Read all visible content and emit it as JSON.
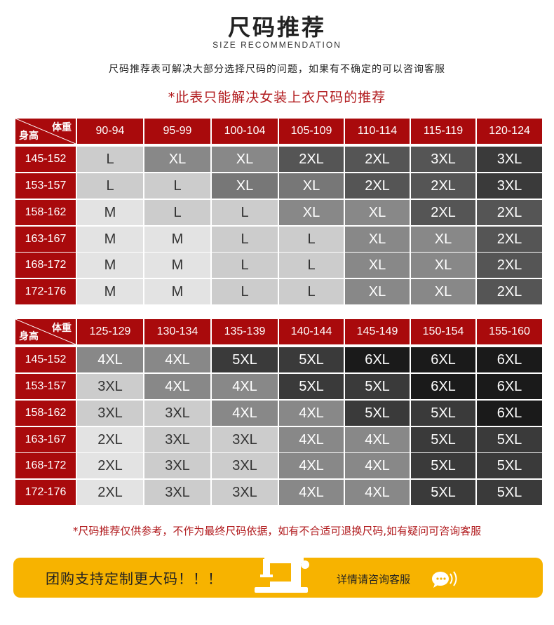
{
  "header": {
    "title": "尺码推荐",
    "subtitle": "SIZE RECOMMENDATION",
    "description": "尺码推荐表可解决大部分选择尺码的问题，如果有不确定的可以咨询客服",
    "red_note": "*此表只能解决女装上衣尺码的推荐"
  },
  "colors": {
    "header_red": "#a90a0c",
    "accent_red": "#b11a1d",
    "banner_yellow": "#f7b300",
    "size_shades": {
      "M": "#e3e3e3",
      "L": "#cccccc",
      "XL": "#888888",
      "2XL": "#555555",
      "3XL": "#3a3a3a",
      "4XL": "#444444",
      "5XL": "#2a2a2a",
      "6XL": "#1a1a1a"
    }
  },
  "tables": [
    {
      "corner_weight": "体重",
      "corner_height": "身高",
      "weight_ranges": [
        "90-94",
        "95-99",
        "100-104",
        "105-109",
        "110-114",
        "115-119",
        "120-124"
      ],
      "rows": [
        {
          "height": "145-152",
          "cells": [
            {
              "v": "L",
              "c": "#cccccc",
              "t": "#333"
            },
            {
              "v": "XL",
              "c": "#888888",
              "t": "#fff"
            },
            {
              "v": "XL",
              "c": "#888888",
              "t": "#fff"
            },
            {
              "v": "2XL",
              "c": "#555555",
              "t": "#fff"
            },
            {
              "v": "2XL",
              "c": "#555555",
              "t": "#fff"
            },
            {
              "v": "3XL",
              "c": "#555555",
              "t": "#fff"
            },
            {
              "v": "3XL",
              "c": "#3a3a3a",
              "t": "#fff"
            }
          ]
        },
        {
          "height": "153-157",
          "cells": [
            {
              "v": "L",
              "c": "#cccccc",
              "t": "#333"
            },
            {
              "v": "L",
              "c": "#cccccc",
              "t": "#333"
            },
            {
              "v": "XL",
              "c": "#777777",
              "t": "#fff"
            },
            {
              "v": "XL",
              "c": "#777777",
              "t": "#fff"
            },
            {
              "v": "2XL",
              "c": "#555555",
              "t": "#fff"
            },
            {
              "v": "2XL",
              "c": "#555555",
              "t": "#fff"
            },
            {
              "v": "3XL",
              "c": "#3a3a3a",
              "t": "#fff"
            }
          ]
        },
        {
          "height": "158-162",
          "cells": [
            {
              "v": "M",
              "c": "#e3e3e3",
              "t": "#333"
            },
            {
              "v": "L",
              "c": "#cccccc",
              "t": "#333"
            },
            {
              "v": "L",
              "c": "#cccccc",
              "t": "#333"
            },
            {
              "v": "XL",
              "c": "#888888",
              "t": "#fff"
            },
            {
              "v": "XL",
              "c": "#888888",
              "t": "#fff"
            },
            {
              "v": "2XL",
              "c": "#555555",
              "t": "#fff"
            },
            {
              "v": "2XL",
              "c": "#555555",
              "t": "#fff"
            }
          ]
        },
        {
          "height": "163-167",
          "cells": [
            {
              "v": "M",
              "c": "#e3e3e3",
              "t": "#333"
            },
            {
              "v": "M",
              "c": "#e3e3e3",
              "t": "#333"
            },
            {
              "v": "L",
              "c": "#cccccc",
              "t": "#333"
            },
            {
              "v": "L",
              "c": "#cccccc",
              "t": "#333"
            },
            {
              "v": "XL",
              "c": "#888888",
              "t": "#fff"
            },
            {
              "v": "XL",
              "c": "#888888",
              "t": "#fff"
            },
            {
              "v": "2XL",
              "c": "#555555",
              "t": "#fff"
            }
          ]
        },
        {
          "height": "168-172",
          "cells": [
            {
              "v": "M",
              "c": "#e3e3e3",
              "t": "#333"
            },
            {
              "v": "M",
              "c": "#e3e3e3",
              "t": "#333"
            },
            {
              "v": "L",
              "c": "#cccccc",
              "t": "#333"
            },
            {
              "v": "L",
              "c": "#cccccc",
              "t": "#333"
            },
            {
              "v": "XL",
              "c": "#888888",
              "t": "#fff"
            },
            {
              "v": "XL",
              "c": "#888888",
              "t": "#fff"
            },
            {
              "v": "2XL",
              "c": "#555555",
              "t": "#fff"
            }
          ]
        },
        {
          "height": "172-176",
          "cells": [
            {
              "v": "M",
              "c": "#e3e3e3",
              "t": "#333"
            },
            {
              "v": "M",
              "c": "#e3e3e3",
              "t": "#333"
            },
            {
              "v": "L",
              "c": "#cccccc",
              "t": "#333"
            },
            {
              "v": "L",
              "c": "#cccccc",
              "t": "#333"
            },
            {
              "v": "XL",
              "c": "#888888",
              "t": "#fff"
            },
            {
              "v": "XL",
              "c": "#888888",
              "t": "#fff"
            },
            {
              "v": "2XL",
              "c": "#555555",
              "t": "#fff"
            }
          ]
        }
      ]
    },
    {
      "corner_weight": "体重",
      "corner_height": "身高",
      "weight_ranges": [
        "125-129",
        "130-134",
        "135-139",
        "140-144",
        "145-149",
        "150-154",
        "155-160"
      ],
      "rows": [
        {
          "height": "145-152",
          "cells": [
            {
              "v": "4XL",
              "c": "#888888",
              "t": "#fff"
            },
            {
              "v": "4XL",
              "c": "#888888",
              "t": "#fff"
            },
            {
              "v": "5XL",
              "c": "#3a3a3a",
              "t": "#fff"
            },
            {
              "v": "5XL",
              "c": "#3a3a3a",
              "t": "#fff"
            },
            {
              "v": "6XL",
              "c": "#1a1a1a",
              "t": "#fff"
            },
            {
              "v": "6XL",
              "c": "#1a1a1a",
              "t": "#fff"
            },
            {
              "v": "6XL",
              "c": "#1a1a1a",
              "t": "#fff"
            }
          ]
        },
        {
          "height": "153-157",
          "cells": [
            {
              "v": "3XL",
              "c": "#cccccc",
              "t": "#333"
            },
            {
              "v": "4XL",
              "c": "#888888",
              "t": "#fff"
            },
            {
              "v": "4XL",
              "c": "#888888",
              "t": "#fff"
            },
            {
              "v": "5XL",
              "c": "#3a3a3a",
              "t": "#fff"
            },
            {
              "v": "5XL",
              "c": "#3a3a3a",
              "t": "#fff"
            },
            {
              "v": "6XL",
              "c": "#1a1a1a",
              "t": "#fff"
            },
            {
              "v": "6XL",
              "c": "#1a1a1a",
              "t": "#fff"
            }
          ]
        },
        {
          "height": "158-162",
          "cells": [
            {
              "v": "3XL",
              "c": "#cccccc",
              "t": "#333"
            },
            {
              "v": "3XL",
              "c": "#cccccc",
              "t": "#333"
            },
            {
              "v": "4XL",
              "c": "#888888",
              "t": "#fff"
            },
            {
              "v": "4XL",
              "c": "#888888",
              "t": "#fff"
            },
            {
              "v": "5XL",
              "c": "#3a3a3a",
              "t": "#fff"
            },
            {
              "v": "5XL",
              "c": "#3a3a3a",
              "t": "#fff"
            },
            {
              "v": "6XL",
              "c": "#1a1a1a",
              "t": "#fff"
            }
          ]
        },
        {
          "height": "163-167",
          "cells": [
            {
              "v": "2XL",
              "c": "#e3e3e3",
              "t": "#333"
            },
            {
              "v": "3XL",
              "c": "#cccccc",
              "t": "#333"
            },
            {
              "v": "3XL",
              "c": "#cccccc",
              "t": "#333"
            },
            {
              "v": "4XL",
              "c": "#888888",
              "t": "#fff"
            },
            {
              "v": "4XL",
              "c": "#888888",
              "t": "#fff"
            },
            {
              "v": "5XL",
              "c": "#3a3a3a",
              "t": "#fff"
            },
            {
              "v": "5XL",
              "c": "#3a3a3a",
              "t": "#fff"
            }
          ]
        },
        {
          "height": "168-172",
          "cells": [
            {
              "v": "2XL",
              "c": "#e3e3e3",
              "t": "#333"
            },
            {
              "v": "3XL",
              "c": "#cccccc",
              "t": "#333"
            },
            {
              "v": "3XL",
              "c": "#cccccc",
              "t": "#333"
            },
            {
              "v": "4XL",
              "c": "#888888",
              "t": "#fff"
            },
            {
              "v": "4XL",
              "c": "#888888",
              "t": "#fff"
            },
            {
              "v": "5XL",
              "c": "#3a3a3a",
              "t": "#fff"
            },
            {
              "v": "5XL",
              "c": "#3a3a3a",
              "t": "#fff"
            }
          ]
        },
        {
          "height": "172-176",
          "cells": [
            {
              "v": "2XL",
              "c": "#e3e3e3",
              "t": "#333"
            },
            {
              "v": "3XL",
              "c": "#cccccc",
              "t": "#333"
            },
            {
              "v": "3XL",
              "c": "#cccccc",
              "t": "#333"
            },
            {
              "v": "4XL",
              "c": "#888888",
              "t": "#fff"
            },
            {
              "v": "4XL",
              "c": "#888888",
              "t": "#fff"
            },
            {
              "v": "5XL",
              "c": "#3a3a3a",
              "t": "#fff"
            },
            {
              "v": "5XL",
              "c": "#3a3a3a",
              "t": "#fff"
            }
          ]
        }
      ]
    }
  ],
  "footnote": "*尺码推荐仅供参考，不作为最终尺码依据，如有不合适可退换尺码,如有疑问可咨询客服",
  "banner": {
    "left_text": "团购支持定制更大码！！！",
    "right_text": "详情请咨询客服",
    "machine_icon": "sewing-machine-icon",
    "chat_icon": "chat-bubble-icon"
  }
}
